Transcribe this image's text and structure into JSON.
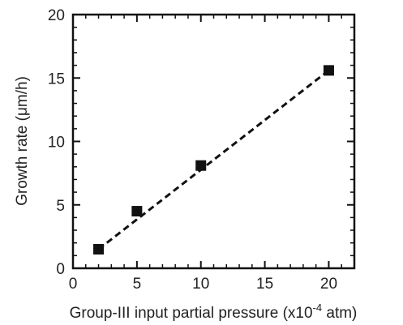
{
  "chart_data": {
    "type": "scatter",
    "title": "",
    "xlabel_main": "Group-III input partial pressure (x10",
    "xlabel_exp": "-4",
    "xlabel_tail": " atm)",
    "ylabel": "Growth rate (μm/h)",
    "xlim": [
      0,
      22
    ],
    "ylim": [
      0,
      20
    ],
    "x_ticks": [
      0,
      5,
      10,
      15,
      20
    ],
    "y_ticks": [
      0,
      5,
      10,
      15,
      20
    ],
    "grid": false,
    "marker": "square",
    "marker_color": "#111111",
    "fit_line": {
      "style": "dashed",
      "color": "#111111",
      "from": [
        2,
        1.5
      ],
      "to": [
        20,
        15.6
      ]
    },
    "series": [
      {
        "x": [
          2,
          5,
          10,
          20
        ],
        "y": [
          1.5,
          4.5,
          8.1,
          15.6
        ]
      }
    ]
  }
}
